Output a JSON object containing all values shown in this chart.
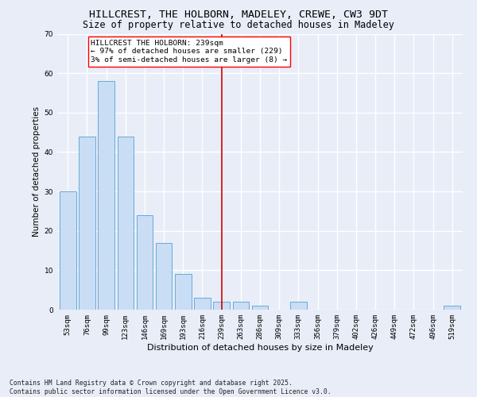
{
  "title": "HILLCREST, THE HOLBORN, MADELEY, CREWE, CW3 9DT",
  "subtitle": "Size of property relative to detached houses in Madeley",
  "xlabel": "Distribution of detached houses by size in Madeley",
  "ylabel": "Number of detached properties",
  "categories": [
    "53sqm",
    "76sqm",
    "99sqm",
    "123sqm",
    "146sqm",
    "169sqm",
    "193sqm",
    "216sqm",
    "239sqm",
    "263sqm",
    "286sqm",
    "309sqm",
    "333sqm",
    "356sqm",
    "379sqm",
    "402sqm",
    "426sqm",
    "449sqm",
    "472sqm",
    "496sqm",
    "519sqm"
  ],
  "values": [
    30,
    44,
    58,
    44,
    24,
    17,
    9,
    3,
    2,
    2,
    1,
    0,
    2,
    0,
    0,
    0,
    0,
    0,
    0,
    0,
    1
  ],
  "bar_color": "#c9ddf5",
  "bar_edge_color": "#6aaad4",
  "highlight_index": 8,
  "vline_color": "#cc0000",
  "ylim": [
    0,
    70
  ],
  "yticks": [
    0,
    10,
    20,
    30,
    40,
    50,
    60,
    70
  ],
  "annotation_title": "HILLCREST THE HOLBORN: 239sqm",
  "annotation_line1": "← 97% of detached houses are smaller (229)",
  "annotation_line2": "3% of semi-detached houses are larger (8) →",
  "footer_line1": "Contains HM Land Registry data © Crown copyright and database right 2025.",
  "footer_line2": "Contains public sector information licensed under the Open Government Licence v3.0.",
  "bg_color": "#e8edf8",
  "grid_color": "#ffffff",
  "title_fontsize": 9.5,
  "subtitle_fontsize": 8.5,
  "xlabel_fontsize": 8,
  "ylabel_fontsize": 7.5,
  "tick_fontsize": 6.5,
  "ann_fontsize": 6.8,
  "footer_fontsize": 5.8
}
